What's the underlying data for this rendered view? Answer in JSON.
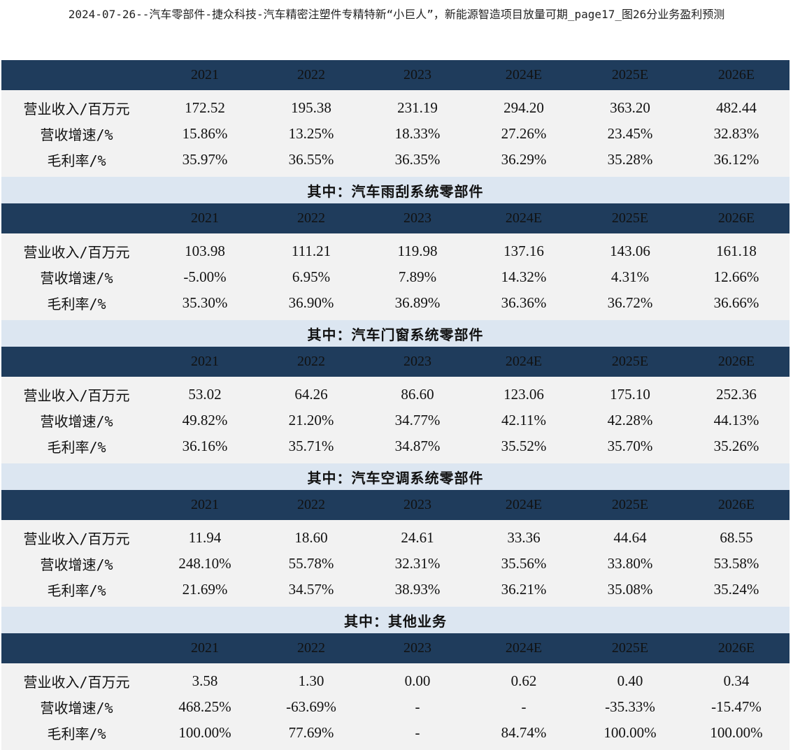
{
  "title": "2024-07-26--汽车零部件-捷众科技-汽车精密注塑件专精特新“小巨人”，新能源智造项目放量可期_page17_图26分业务盈利预测",
  "columns": [
    "2021",
    "2022",
    "2023",
    "2024E",
    "2025E",
    "2026E"
  ],
  "sections": [
    {
      "name": "",
      "rows": [
        {
          "label": "营业收入/百万元",
          "values": [
            "172.52",
            "195.38",
            "231.19",
            "294.20",
            "363.20",
            "482.44"
          ]
        },
        {
          "label": "营收增速/%",
          "values": [
            "15.86%",
            "13.25%",
            "18.33%",
            "27.26%",
            "23.45%",
            "32.83%"
          ]
        },
        {
          "label": "毛利率/%",
          "values": [
            "35.97%",
            "36.55%",
            "36.35%",
            "36.29%",
            "35.28%",
            "36.12%"
          ]
        }
      ]
    },
    {
      "name": "其中：汽车雨刮系统零部件",
      "rows": [
        {
          "label": "营业收入/百万元",
          "values": [
            "103.98",
            "111.21",
            "119.98",
            "137.16",
            "143.06",
            "161.18"
          ]
        },
        {
          "label": "营收增速/%",
          "values": [
            "-5.00%",
            "6.95%",
            "7.89%",
            "14.32%",
            "4.31%",
            "12.66%"
          ]
        },
        {
          "label": "毛利率/%",
          "values": [
            "35.30%",
            "36.90%",
            "36.89%",
            "36.36%",
            "36.72%",
            "36.66%"
          ]
        }
      ]
    },
    {
      "name": "其中：汽车门窗系统零部件",
      "rows": [
        {
          "label": "营业收入/百万元",
          "values": [
            "53.02",
            "64.26",
            "86.60",
            "123.06",
            "175.10",
            "252.36"
          ]
        },
        {
          "label": "营收增速/%",
          "values": [
            "49.82%",
            "21.20%",
            "34.77%",
            "42.11%",
            "42.28%",
            "44.13%"
          ]
        },
        {
          "label": "毛利率/%",
          "values": [
            "36.16%",
            "35.71%",
            "34.87%",
            "35.52%",
            "35.70%",
            "35.26%"
          ]
        }
      ]
    },
    {
      "name": "其中：汽车空调系统零部件",
      "rows": [
        {
          "label": "营业收入/百万元",
          "values": [
            "11.94",
            "18.60",
            "24.61",
            "33.36",
            "44.64",
            "68.55"
          ]
        },
        {
          "label": "营收增速/%",
          "values": [
            "248.10%",
            "55.78%",
            "32.31%",
            "35.56%",
            "33.80%",
            "53.58%"
          ]
        },
        {
          "label": "毛利率/%",
          "values": [
            "21.69%",
            "34.57%",
            "38.93%",
            "36.21%",
            "35.08%",
            "35.24%"
          ]
        }
      ]
    },
    {
      "name": "其中：其他业务",
      "rows": [
        {
          "label": "营业收入/百万元",
          "values": [
            "3.58",
            "1.30",
            "0.00",
            "0.62",
            "0.40",
            "0.34"
          ]
        },
        {
          "label": "营收增速/%",
          "values": [
            "468.25%",
            "-63.69%",
            "-",
            "-",
            "-35.33%",
            "-15.47%"
          ]
        },
        {
          "label": "毛利率/%",
          "values": [
            "100.00%",
            "77.69%",
            "-",
            "84.74%",
            "100.00%",
            "100.00%"
          ]
        }
      ]
    }
  ]
}
